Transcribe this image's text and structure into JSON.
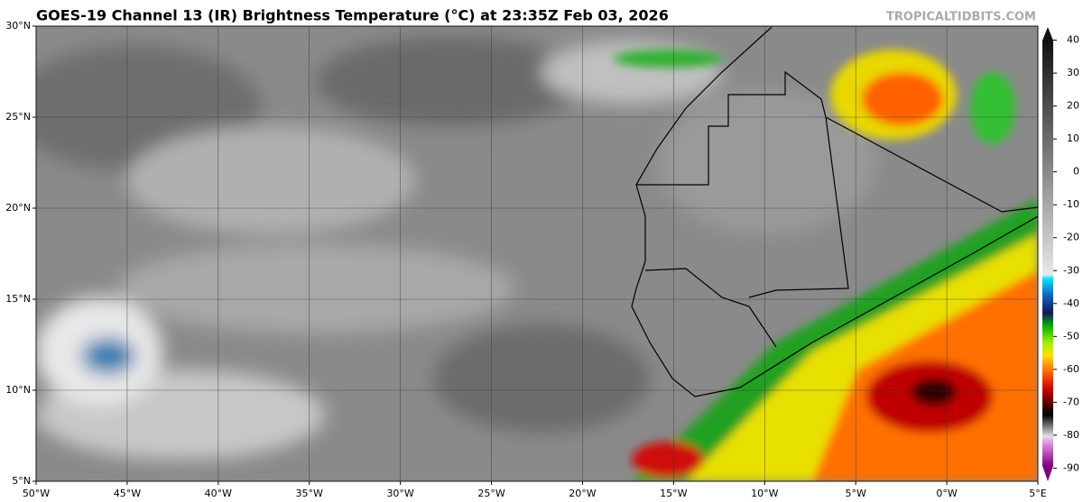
{
  "header": {
    "title": "GOES-19 Channel 13 (IR) Brightness Temperature (°C) at 23:35Z Feb 03, 2026",
    "credit": "TROPICALTIDBITS.COM"
  },
  "map": {
    "lonlim": [
      -50,
      5
    ],
    "latlim": [
      5,
      30
    ],
    "lon_ticks": [
      {
        "value": -50,
        "label": "50°W"
      },
      {
        "value": -45,
        "label": "45°W"
      },
      {
        "value": -40,
        "label": "40°W"
      },
      {
        "value": -35,
        "label": "35°W"
      },
      {
        "value": -30,
        "label": "30°W"
      },
      {
        "value": -25,
        "label": "25°W"
      },
      {
        "value": -20,
        "label": "20°W"
      },
      {
        "value": -15,
        "label": "15°W"
      },
      {
        "value": -10,
        "label": "10°W"
      },
      {
        "value": -5,
        "label": "5°W"
      },
      {
        "value": 0,
        "label": "0°W"
      },
      {
        "value": 5,
        "label": "5°E"
      }
    ],
    "lat_ticks": [
      {
        "value": 30,
        "label": "30°N"
      },
      {
        "value": 25,
        "label": "25°N"
      },
      {
        "value": 20,
        "label": "20°N"
      },
      {
        "value": 15,
        "label": "15°N"
      },
      {
        "value": 10,
        "label": "10°N"
      },
      {
        "value": 5,
        "label": "5°N"
      }
    ]
  },
  "colorbar": {
    "range": [
      -94,
      44
    ],
    "ticks": [
      40,
      30,
      20,
      10,
      0,
      -10,
      -20,
      -30,
      -40,
      -50,
      -60,
      -70,
      -80,
      -90
    ]
  }
}
